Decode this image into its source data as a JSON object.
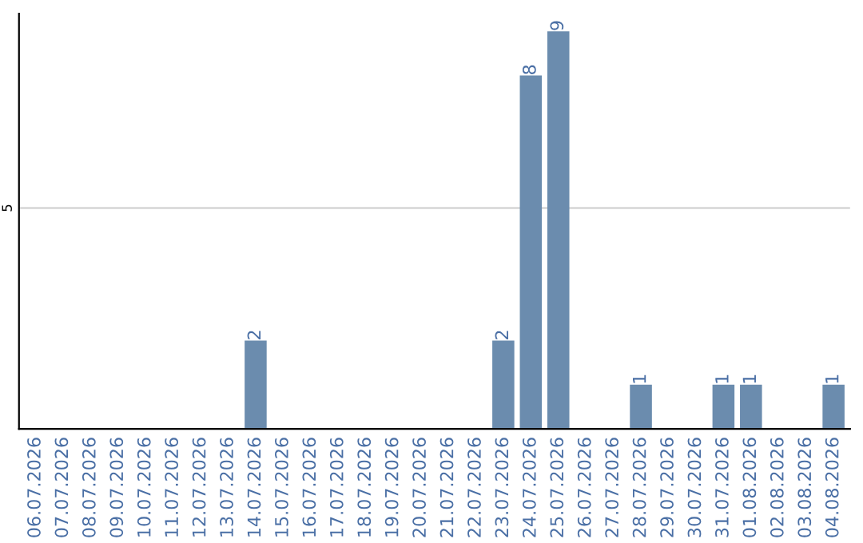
{
  "chart_data": {
    "type": "bar",
    "categories": [
      "06.07.2026",
      "07.07.2026",
      "08.07.2026",
      "09.07.2026",
      "10.07.2026",
      "11.07.2026",
      "12.07.2026",
      "13.07.2026",
      "14.07.2026",
      "15.07.2026",
      "16.07.2026",
      "17.07.2026",
      "18.07.2026",
      "19.07.2026",
      "20.07.2026",
      "21.07.2026",
      "22.07.2026",
      "23.07.2026",
      "24.07.2026",
      "25.07.2026",
      "26.07.2026",
      "27.07.2026",
      "28.07.2026",
      "29.07.2026",
      "30.07.2026",
      "31.07.2026",
      "01.08.2026",
      "02.08.2026",
      "03.08.2026",
      "04.08.2026"
    ],
    "values": [
      0,
      0,
      0,
      0,
      0,
      0,
      0,
      0,
      2,
      0,
      0,
      0,
      0,
      0,
      0,
      0,
      0,
      2,
      8,
      9,
      0,
      0,
      1,
      0,
      0,
      1,
      1,
      0,
      0,
      1
    ],
    "value_labels": [
      null,
      null,
      null,
      null,
      null,
      null,
      null,
      null,
      "2",
      null,
      null,
      null,
      null,
      null,
      null,
      null,
      null,
      "2",
      "8",
      "9",
      null,
      null,
      "1",
      null,
      null,
      "1",
      "1",
      null,
      null,
      "1"
    ],
    "color": "#6b8cae",
    "ylim": [
      0,
      9.4
    ],
    "yticks": [
      5
    ],
    "grid": "y"
  }
}
